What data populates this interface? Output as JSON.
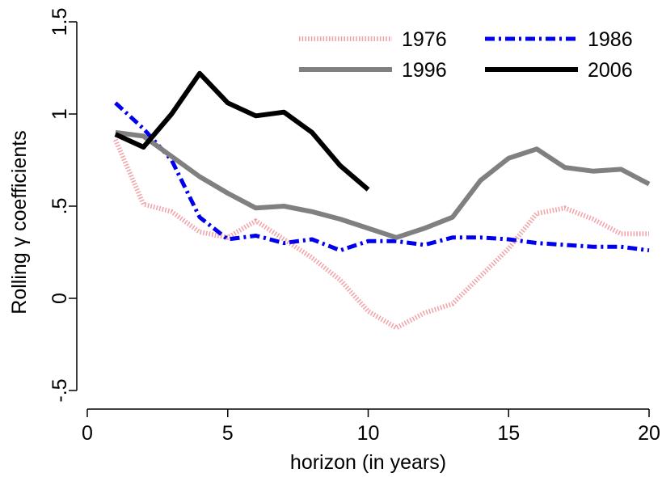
{
  "chart_data": {
    "type": "line",
    "title": "",
    "xlabel": "horizon (in years)",
    "ylabel": "Rolling γ coefficients",
    "xlim": [
      0,
      20
    ],
    "ylim": [
      -0.5,
      1.5
    ],
    "x_ticks": [
      0,
      5,
      10,
      15,
      20
    ],
    "x_tick_labels": [
      "0",
      "5",
      "10",
      "15",
      "20"
    ],
    "y_ticks": [
      -0.5,
      0,
      0.5,
      1,
      1.5
    ],
    "y_tick_labels": [
      "-.5",
      "0",
      ".5",
      "1",
      "1.5"
    ],
    "grid": false,
    "legend_position": "top-right",
    "series": [
      {
        "name": "1976",
        "color": "#f2a0a6",
        "style": "dotted",
        "x": [
          1,
          2,
          3,
          4,
          5,
          6,
          7,
          8,
          9,
          10,
          11,
          12,
          13,
          14,
          15,
          16,
          17,
          18,
          19,
          20
        ],
        "y": [
          0.86,
          0.51,
          0.47,
          0.36,
          0.33,
          0.42,
          0.32,
          0.22,
          0.1,
          -0.07,
          -0.16,
          -0.08,
          -0.03,
          0.12,
          0.27,
          0.46,
          0.49,
          0.43,
          0.35,
          0.35
        ]
      },
      {
        "name": "1986",
        "color": "#0000ee",
        "style": "dashdot",
        "x": [
          1,
          2,
          3,
          4,
          5,
          6,
          7,
          8,
          9,
          10,
          11,
          12,
          13,
          14,
          15,
          16,
          17,
          18,
          19,
          20
        ],
        "y": [
          1.06,
          0.92,
          0.75,
          0.44,
          0.32,
          0.34,
          0.3,
          0.32,
          0.26,
          0.31,
          0.31,
          0.29,
          0.33,
          0.33,
          0.32,
          0.3,
          0.29,
          0.28,
          0.28,
          0.26
        ]
      },
      {
        "name": "1996",
        "color": "#808080",
        "style": "solid",
        "x": [
          1,
          2,
          3,
          4,
          5,
          6,
          7,
          8,
          9,
          10,
          11,
          12,
          13,
          14,
          15,
          16,
          17,
          18,
          19,
          20
        ],
        "y": [
          0.9,
          0.88,
          0.77,
          0.66,
          0.57,
          0.49,
          0.5,
          0.47,
          0.43,
          0.38,
          0.33,
          0.38,
          0.44,
          0.64,
          0.76,
          0.81,
          0.71,
          0.69,
          0.7,
          0.62
        ]
      },
      {
        "name": "2006",
        "color": "#000000",
        "style": "solid",
        "x": [
          1,
          2,
          3,
          4,
          5,
          6,
          7,
          8,
          9,
          10
        ],
        "y": [
          0.89,
          0.82,
          1.0,
          1.22,
          1.06,
          0.99,
          1.01,
          0.9,
          0.72,
          0.59
        ]
      }
    ]
  }
}
